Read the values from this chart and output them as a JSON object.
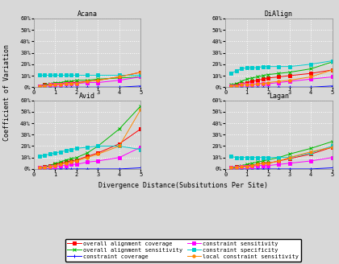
{
  "x": [
    0.25,
    0.5,
    0.75,
    1.0,
    1.25,
    1.5,
    1.75,
    2.0,
    2.5,
    3.0,
    4.0,
    5.0
  ],
  "subplots": {
    "Acana": {
      "overall_alignment_coverage": [
        0.01,
        0.02,
        0.02,
        0.03,
        0.03,
        0.04,
        0.04,
        0.04,
        0.05,
        0.06,
        0.09,
        0.13
      ],
      "overall_alignment_sensitivity": [
        0.01,
        0.02,
        0.03,
        0.04,
        0.04,
        0.05,
        0.05,
        0.06,
        0.06,
        0.07,
        0.08,
        0.09
      ],
      "constraint_coverage": [
        0.0,
        0.0,
        0.0,
        0.0,
        0.0,
        0.0,
        0.0,
        0.0,
        0.0,
        0.0,
        0.0,
        0.01
      ],
      "constraint_sensitivity": [
        0.01,
        0.01,
        0.02,
        0.02,
        0.02,
        0.03,
        0.03,
        0.03,
        0.04,
        0.04,
        0.06,
        0.09
      ],
      "constraint_specificity": [
        0.11,
        0.11,
        0.11,
        0.11,
        0.11,
        0.11,
        0.11,
        0.11,
        0.11,
        0.11,
        0.11,
        0.11
      ],
      "local_constraint_sensitivity": [
        0.01,
        0.01,
        0.02,
        0.02,
        0.02,
        0.03,
        0.03,
        0.03,
        0.05,
        0.06,
        0.09,
        0.13
      ]
    },
    "DiAlign": {
      "overall_alignment_coverage": [
        0.01,
        0.02,
        0.03,
        0.04,
        0.05,
        0.06,
        0.07,
        0.08,
        0.09,
        0.1,
        0.12,
        0.15
      ],
      "overall_alignment_sensitivity": [
        0.02,
        0.03,
        0.05,
        0.07,
        0.08,
        0.09,
        0.1,
        0.11,
        0.12,
        0.13,
        0.16,
        0.22
      ],
      "constraint_coverage": [
        0.0,
        0.0,
        0.0,
        0.0,
        0.0,
        0.0,
        0.0,
        0.0,
        0.0,
        0.0,
        0.0,
        0.01
      ],
      "constraint_sensitivity": [
        0.01,
        0.01,
        0.02,
        0.02,
        0.02,
        0.03,
        0.03,
        0.03,
        0.04,
        0.05,
        0.07,
        0.09
      ],
      "constraint_specificity": [
        0.12,
        0.14,
        0.16,
        0.17,
        0.17,
        0.17,
        0.18,
        0.18,
        0.18,
        0.18,
        0.2,
        0.23
      ],
      "local_constraint_sensitivity": [
        0.01,
        0.01,
        0.02,
        0.02,
        0.02,
        0.03,
        0.03,
        0.04,
        0.05,
        0.06,
        0.09,
        0.15
      ]
    },
    "Avid": {
      "overall_alignment_coverage": [
        0.01,
        0.02,
        0.03,
        0.04,
        0.05,
        0.06,
        0.07,
        0.08,
        0.11,
        0.14,
        0.22,
        0.35
      ],
      "overall_alignment_sensitivity": [
        0.01,
        0.02,
        0.03,
        0.05,
        0.06,
        0.08,
        0.09,
        0.1,
        0.14,
        0.2,
        0.35,
        0.55
      ],
      "constraint_coverage": [
        0.0,
        0.0,
        0.0,
        0.0,
        0.0,
        0.0,
        0.0,
        0.0,
        0.0,
        0.0,
        0.0,
        0.01
      ],
      "constraint_sensitivity": [
        0.01,
        0.01,
        0.02,
        0.02,
        0.03,
        0.03,
        0.04,
        0.04,
        0.06,
        0.07,
        0.1,
        0.19
      ],
      "constraint_specificity": [
        0.11,
        0.12,
        0.13,
        0.14,
        0.15,
        0.16,
        0.17,
        0.18,
        0.19,
        0.2,
        0.2,
        0.17
      ],
      "local_constraint_sensitivity": [
        0.01,
        0.01,
        0.02,
        0.03,
        0.04,
        0.05,
        0.06,
        0.07,
        0.1,
        0.13,
        0.2,
        0.52
      ]
    },
    "Lagan": {
      "overall_alignment_coverage": [
        0.01,
        0.02,
        0.02,
        0.03,
        0.03,
        0.04,
        0.05,
        0.05,
        0.07,
        0.09,
        0.13,
        0.19
      ],
      "overall_alignment_sensitivity": [
        0.01,
        0.02,
        0.03,
        0.04,
        0.05,
        0.06,
        0.07,
        0.08,
        0.1,
        0.13,
        0.18,
        0.24
      ],
      "constraint_coverage": [
        0.0,
        0.0,
        0.0,
        0.0,
        0.0,
        0.0,
        0.0,
        0.0,
        0.0,
        0.0,
        0.0,
        0.01
      ],
      "constraint_sensitivity": [
        0.01,
        0.01,
        0.02,
        0.02,
        0.02,
        0.03,
        0.03,
        0.03,
        0.04,
        0.05,
        0.07,
        0.1
      ],
      "constraint_specificity": [
        0.11,
        0.1,
        0.1,
        0.1,
        0.1,
        0.1,
        0.1,
        0.1,
        0.1,
        0.1,
        0.14,
        0.2
      ],
      "local_constraint_sensitivity": [
        0.01,
        0.01,
        0.02,
        0.02,
        0.03,
        0.04,
        0.05,
        0.05,
        0.07,
        0.1,
        0.15,
        0.19
      ]
    }
  },
  "series_styles": {
    "overall_alignment_coverage": {
      "color": "#ff0000",
      "marker": "s",
      "label": "overall alignment coverage"
    },
    "overall_alignment_sensitivity": {
      "color": "#00bb00",
      "marker": "x",
      "label": "overall alignment sensitivity"
    },
    "constraint_coverage": {
      "color": "#0000ff",
      "marker": "+",
      "label": "constraint coverage"
    },
    "constraint_sensitivity": {
      "color": "#ff00ff",
      "marker": "s",
      "label": "constraint sensitivity"
    },
    "constraint_specificity": {
      "color": "#00cccc",
      "marker": "s",
      "label": "constraint specificity"
    },
    "local_constraint_sensitivity": {
      "color": "#ff8800",
      "marker": "o",
      "label": "local constraint sensitivity"
    }
  },
  "subplot_order": [
    [
      "Acana",
      "DiAlign"
    ],
    [
      "Avid",
      "Lagan"
    ]
  ],
  "ylim": [
    0.0,
    0.6
  ],
  "yticks": [
    0.0,
    0.1,
    0.2,
    0.3,
    0.4,
    0.5,
    0.6
  ],
  "ytick_labels": [
    "0%",
    "10%",
    "20%",
    "30%",
    "40%",
    "50%",
    "60%"
  ],
  "xlim": [
    0,
    5
  ],
  "xticks": [
    0,
    1,
    2,
    3,
    4,
    5
  ],
  "xlabel": "Divergence Distance(Subsitutions Per Site)",
  "ylabel": "Coefficient of Variation",
  "background_color": "#d8d8d8",
  "grid_color": "#ffffff"
}
